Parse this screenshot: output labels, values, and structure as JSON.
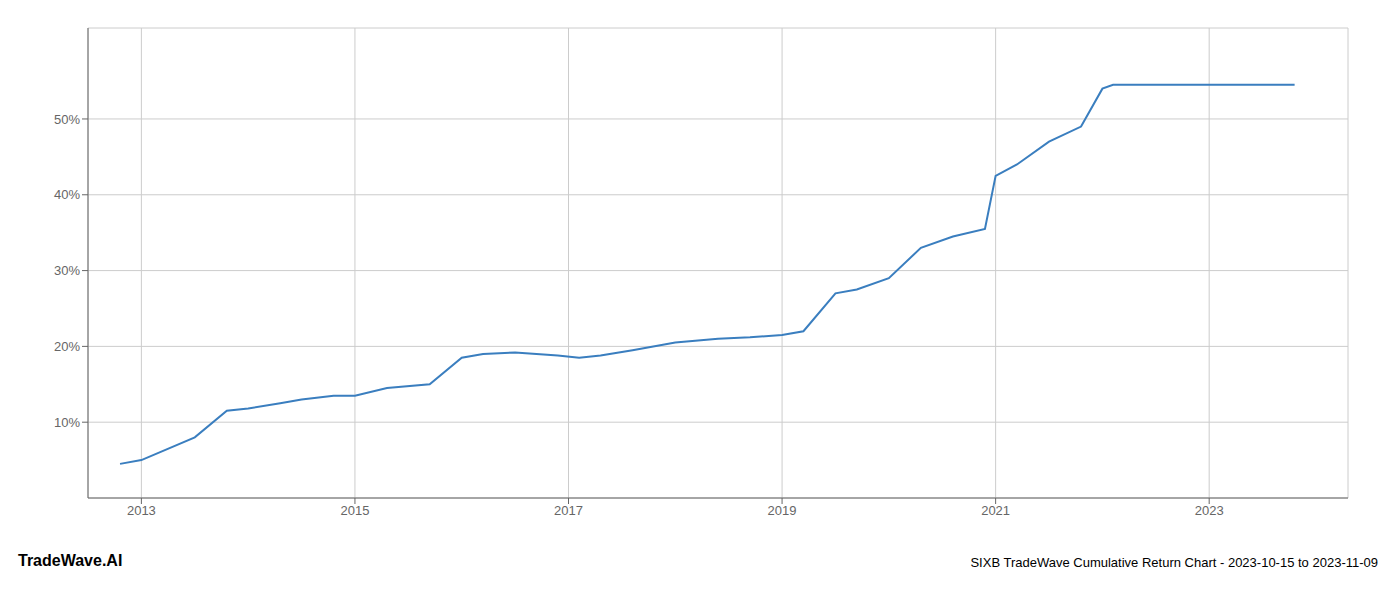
{
  "chart_data": {
    "type": "line",
    "title": "SIXB TradeWave Cumulative Return Chart - 2023-10-15 to 2023-11-09",
    "annotations": [
      "TradeWave.AI"
    ],
    "x": [
      2012.8,
      2013.0,
      2013.5,
      2013.8,
      2014.0,
      2014.3,
      2014.5,
      2014.8,
      2015.0,
      2015.3,
      2015.7,
      2016.0,
      2016.2,
      2016.5,
      2016.7,
      2016.9,
      2017.1,
      2017.3,
      2017.6,
      2018.0,
      2018.4,
      2018.7,
      2019.0,
      2019.2,
      2019.5,
      2019.7,
      2020.0,
      2020.3,
      2020.6,
      2020.9,
      2021.0,
      2021.2,
      2021.5,
      2021.8,
      2022.0,
      2022.1,
      2022.3,
      2022.6,
      2023.0,
      2023.8
    ],
    "values": [
      4.5,
      5.0,
      8.0,
      11.5,
      11.8,
      12.5,
      13.0,
      13.5,
      13.5,
      14.5,
      15.0,
      18.5,
      19.0,
      19.2,
      19.0,
      18.8,
      18.5,
      18.8,
      19.5,
      20.5,
      21.0,
      21.2,
      21.5,
      22.0,
      27.0,
      27.5,
      29.0,
      33.0,
      34.5,
      35.5,
      42.5,
      44.0,
      47.0,
      49.0,
      54.0,
      54.5,
      54.5,
      54.5,
      54.5,
      54.5
    ],
    "color": "#3a7ebf",
    "xlim": [
      2012.5,
      2024.3
    ],
    "xticks": [
      2013,
      2015,
      2017,
      2019,
      2021,
      2023
    ],
    "ylim": [
      0,
      62
    ],
    "yticks": [
      {
        "value": 10,
        "label": "10%"
      },
      {
        "value": 20,
        "label": "20%"
      },
      {
        "value": 30,
        "label": "30%"
      },
      {
        "value": 40,
        "label": "40%"
      },
      {
        "value": 50,
        "label": "50%"
      }
    ],
    "grid": true
  }
}
